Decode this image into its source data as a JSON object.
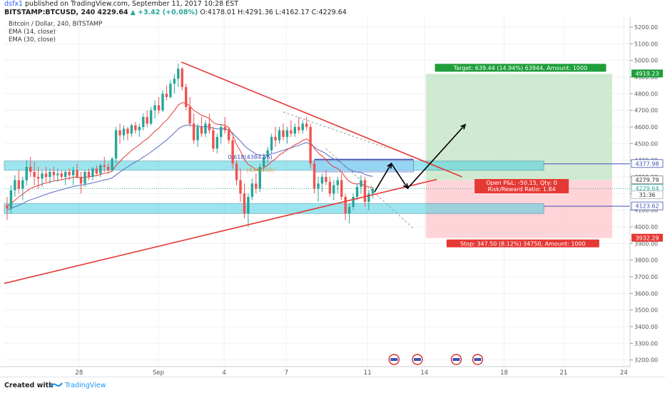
{
  "header": {
    "author": "dsfx1",
    "published_text": "published on TradingView.com, September 11, 2017 10:28 EST",
    "symbol": "BITSTAMP:BTCUSD, 240",
    "last": "4229.64",
    "change": "+3.42 (+0.08%)",
    "o": "O:4178.01",
    "h": "H:4291.36",
    "l": "L:4162.17",
    "c": "C:4229.64"
  },
  "legend": {
    "series": "Bitcoin / Dollar, 240, BITSTAMP",
    "ema14": "EMA (14, close)",
    "ema30": "EMA (30, close)"
  },
  "footer": {
    "created_with": "Created with",
    "brand": "TradingView"
  },
  "colors": {
    "up": "#26a69a",
    "down": "#ef5350",
    "ema14": "#e53935",
    "ema30": "#5c6bc0",
    "trend": "#e53935",
    "zone": "#4dd0e1",
    "target_zone": "#c8e6c9",
    "stop_zone": "#ffcdd2",
    "target_label": "#1e9e3a",
    "stop_label": "#e53935",
    "price_tag": "#555555",
    "ref_line": "#3f51b5"
  },
  "chart_data": {
    "type": "candlestick",
    "x_tick_labels": [
      "28",
      "Sep",
      "4",
      "7",
      "11",
      "14",
      "18",
      "21",
      "24"
    ],
    "y_tick_labels": [
      "3200.00",
      "3300.00",
      "3400.00",
      "3500.00",
      "3600.00",
      "3700.00",
      "3800.00",
      "3900.00",
      "4000.00",
      "4100.00",
      "4200.00",
      "4300.00",
      "4400.00",
      "4500.00",
      "4600.00",
      "4700.00",
      "4800.00",
      "4900.00",
      "5000.00",
      "5100.00",
      "5200.00"
    ],
    "ylim": [
      3160,
      5260
    ],
    "grid": true,
    "price_tags": [
      {
        "label": "4919.23",
        "value": 4919.23,
        "kind": "target"
      },
      {
        "label": "4377.98",
        "value": 4377.98,
        "kind": "ref"
      },
      {
        "label": "4279.79",
        "value": 4279.79,
        "kind": "entry"
      },
      {
        "label": "4229.64",
        "value": 4229.64,
        "kind": "last"
      },
      {
        "label": "31:36",
        "value": 4190,
        "kind": "timer"
      },
      {
        "label": "4123.62",
        "value": 4123.62,
        "kind": "ref"
      },
      {
        "label": "3932.29",
        "value": 3932.29,
        "kind": "stop"
      }
    ],
    "annotations": {
      "target": "Target: 639.44 (14.94%) 63944, Amount: 1000",
      "open_pnl": "Open P&L: -50.15, Qty: 0",
      "risk_reward": "Risk/Reward Ratio: 1.84",
      "stop": "Stop: 347.50 (8.12%) 34750, Amount: 1000",
      "fib": "0.618(4384.56)",
      "fib2": "(4343.92)"
    },
    "candles": [
      [
        4130,
        4180,
        4040,
        4110
      ],
      [
        4110,
        4250,
        4080,
        4220
      ],
      [
        4220,
        4310,
        4180,
        4280
      ],
      [
        4280,
        4340,
        4200,
        4230
      ],
      [
        4230,
        4300,
        4160,
        4280
      ],
      [
        4280,
        4400,
        4250,
        4360
      ],
      [
        4360,
        4420,
        4300,
        4330
      ],
      [
        4330,
        4390,
        4250,
        4300
      ],
      [
        4300,
        4360,
        4230,
        4290
      ],
      [
        4290,
        4340,
        4240,
        4320
      ],
      [
        4320,
        4360,
        4270,
        4300
      ],
      [
        4300,
        4350,
        4260,
        4330
      ],
      [
        4330,
        4360,
        4280,
        4310
      ],
      [
        4310,
        4350,
        4270,
        4320
      ],
      [
        4320,
        4340,
        4280,
        4300
      ],
      [
        4300,
        4340,
        4250,
        4330
      ],
      [
        4330,
        4350,
        4280,
        4310
      ],
      [
        4310,
        4360,
        4250,
        4340
      ],
      [
        4340,
        4380,
        4290,
        4300
      ],
      [
        4300,
        4330,
        4200,
        4260
      ],
      [
        4260,
        4340,
        4240,
        4330
      ],
      [
        4330,
        4350,
        4280,
        4300
      ],
      [
        4300,
        4360,
        4280,
        4350
      ],
      [
        4350,
        4370,
        4310,
        4320
      ],
      [
        4320,
        4380,
        4300,
        4370
      ],
      [
        4370,
        4420,
        4330,
        4360
      ],
      [
        4360,
        4380,
        4320,
        4340
      ],
      [
        4340,
        4420,
        4330,
        4410
      ],
      [
        4410,
        4600,
        4380,
        4580
      ],
      [
        4580,
        4620,
        4500,
        4550
      ],
      [
        4550,
        4610,
        4520,
        4590
      ],
      [
        4590,
        4600,
        4520,
        4560
      ],
      [
        4560,
        4620,
        4540,
        4610
      ],
      [
        4610,
        4630,
        4560,
        4580
      ],
      [
        4580,
        4620,
        4540,
        4600
      ],
      [
        4600,
        4680,
        4580,
        4660
      ],
      [
        4660,
        4700,
        4600,
        4620
      ],
      [
        4620,
        4720,
        4610,
        4700
      ],
      [
        4700,
        4760,
        4650,
        4730
      ],
      [
        4730,
        4780,
        4680,
        4700
      ],
      [
        4700,
        4820,
        4690,
        4800
      ],
      [
        4800,
        4850,
        4760,
        4780
      ],
      [
        4780,
        4880,
        4770,
        4860
      ],
      [
        4860,
        4920,
        4800,
        4890
      ],
      [
        4890,
        4980,
        4840,
        4950
      ],
      [
        4950,
        4960,
        4820,
        4840
      ],
      [
        4840,
        4860,
        4700,
        4720
      ],
      [
        4720,
        4780,
        4600,
        4620
      ],
      [
        4620,
        4680,
        4500,
        4520
      ],
      [
        4520,
        4620,
        4480,
        4600
      ],
      [
        4600,
        4660,
        4540,
        4560
      ],
      [
        4560,
        4640,
        4540,
        4620
      ],
      [
        4620,
        4680,
        4560,
        4580
      ],
      [
        4580,
        4600,
        4450,
        4470
      ],
      [
        4470,
        4560,
        4440,
        4540
      ],
      [
        4540,
        4620,
        4500,
        4600
      ],
      [
        4600,
        4660,
        4560,
        4580
      ],
      [
        4580,
        4600,
        4500,
        4520
      ],
      [
        4520,
        4540,
        4350,
        4380
      ],
      [
        4380,
        4400,
        4250,
        4280
      ],
      [
        4280,
        4350,
        4150,
        4200
      ],
      [
        4200,
        4260,
        4050,
        4080
      ],
      [
        4080,
        4200,
        4000,
        4180
      ],
      [
        4180,
        4290,
        4160,
        4260
      ],
      [
        4260,
        4320,
        4200,
        4230
      ],
      [
        4230,
        4380,
        4210,
        4360
      ],
      [
        4360,
        4440,
        4330,
        4420
      ],
      [
        4420,
        4480,
        4380,
        4460
      ],
      [
        4460,
        4560,
        4440,
        4540
      ],
      [
        4540,
        4600,
        4480,
        4520
      ],
      [
        4520,
        4600,
        4500,
        4580
      ],
      [
        4580,
        4620,
        4520,
        4540
      ],
      [
        4540,
        4600,
        4500,
        4580
      ],
      [
        4580,
        4640,
        4540,
        4560
      ],
      [
        4560,
        4620,
        4540,
        4600
      ],
      [
        4600,
        4660,
        4560,
        4580
      ],
      [
        4580,
        4640,
        4560,
        4620
      ],
      [
        4620,
        4660,
        4580,
        4600
      ],
      [
        4600,
        4620,
        4350,
        4380
      ],
      [
        4380,
        4400,
        4200,
        4230
      ],
      [
        4230,
        4300,
        4150,
        4260
      ],
      [
        4260,
        4320,
        4210,
        4300
      ],
      [
        4300,
        4340,
        4250,
        4270
      ],
      [
        4270,
        4300,
        4180,
        4200
      ],
      [
        4200,
        4280,
        4160,
        4250
      ],
      [
        4250,
        4300,
        4200,
        4280
      ],
      [
        4280,
        4320,
        4160,
        4180
      ],
      [
        4180,
        4200,
        4040,
        4080
      ],
      [
        4080,
        4140,
        4020,
        4120
      ],
      [
        4120,
        4200,
        4100,
        4180
      ],
      [
        4180,
        4260,
        4160,
        4240
      ],
      [
        4240,
        4310,
        4200,
        4280
      ],
      [
        4280,
        4300,
        4120,
        4150
      ],
      [
        4150,
        4220,
        4100,
        4200
      ],
      [
        4200,
        4240,
        4170,
        4230
      ]
    ],
    "ema14": [
      4120,
      4140,
      4160,
      4180,
      4195,
      4215,
      4230,
      4240,
      4248,
      4257,
      4263,
      4270,
      4275,
      4280,
      4283,
      4289,
      4292,
      4298,
      4298,
      4293,
      4299,
      4299,
      4305,
      4307,
      4315,
      4321,
      4324,
      4335,
      4368,
      4392,
      4418,
      4437,
      4460,
      4476,
      4492,
      4514,
      4528,
      4551,
      4575,
      4592,
      4620,
      4640,
      4669,
      4698,
      4731,
      4746,
      4743,
      4726,
      4699,
      4686,
      4669,
      4662,
      4651,
      4627,
      4616,
      4614,
      4609,
      4597,
      4552,
      4494,
      4455,
      4405,
      4375,
      4360,
      4343,
      4346,
      4356,
      4370,
      4392,
      4408,
      4431,
      4446,
      4463,
      4476,
      4493,
      4503,
      4518,
      4529,
      4509,
      4472,
      4444,
      4425,
      4404,
      4377,
      4360,
      4350,
      4330,
      4296,
      4273,
      4260,
      4257,
      4260,
      4245,
      4239,
      4238
    ],
    "ema30": [
      4100,
      4110,
      4120,
      4130,
      4140,
      4152,
      4162,
      4170,
      4178,
      4187,
      4195,
      4203,
      4210,
      4217,
      4223,
      4230,
      4236,
      4242,
      4247,
      4250,
      4255,
      4259,
      4265,
      4269,
      4276,
      4282,
      4286,
      4294,
      4312,
      4329,
      4346,
      4360,
      4376,
      4389,
      4403,
      4419,
      4433,
      4450,
      4468,
      4484,
      4504,
      4521,
      4542,
      4564,
      4588,
      4603,
      4611,
      4612,
      4605,
      4605,
      4601,
      4602,
      4600,
      4592,
      4588,
      4589,
      4588,
      4583,
      4563,
      4538,
      4516,
      4488,
      4468,
      4453,
      4436,
      4431,
      4430,
      4432,
      4439,
      4444,
      4453,
      4459,
      4467,
      4474,
      4483,
      4489,
      4499,
      4506,
      4497,
      4478,
      4463,
      4452,
      4439,
      4421,
      4408,
      4399,
      4384,
      4361,
      4345,
      4334,
      4329,
      4326,
      4315,
      4307,
      4303
    ]
  }
}
